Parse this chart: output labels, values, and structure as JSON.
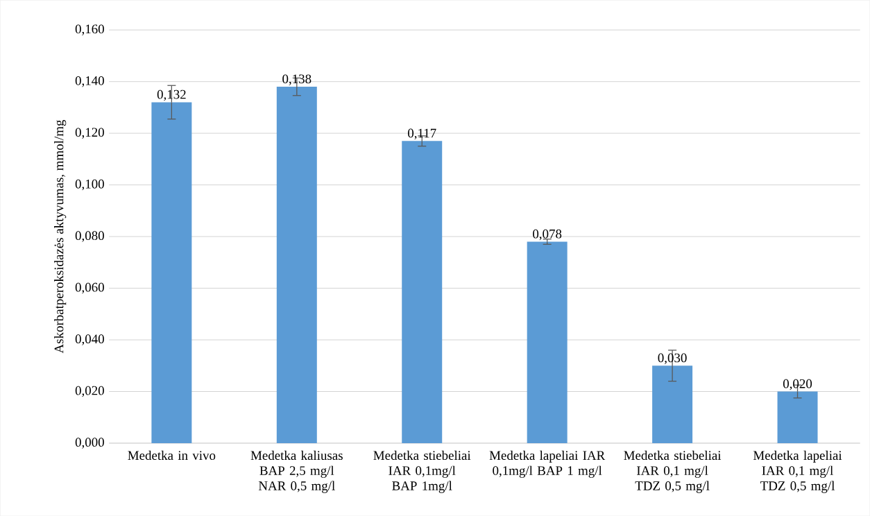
{
  "chart_data": {
    "type": "bar",
    "ylabel": "Askorbatperoksidazės aktyvumas, mmol/mg",
    "categories": [
      "Medetka in vivo",
      "Medetka kaliusas BAP 2,5 mg/l NAR 0,5 mg/l",
      "Medetka stiebeliai IAR 0,1mg/l BAP 1mg/l",
      "Medetka lapeliai IAR 0,1mg/l BAP 1 mg/l",
      "Medetka stiebeliai IAR 0,1 mg/l TDZ 0,5 mg/l",
      "Medetka lapeliai IAR 0,1 mg/l TDZ 0,5 mg/l"
    ],
    "values": [
      0.132,
      0.138,
      0.117,
      0.078,
      0.03,
      0.02
    ],
    "value_labels": [
      "0,132",
      "0,138",
      "0,117",
      "0,078",
      "0,030",
      "0,020"
    ],
    "errors": [
      0.0065,
      0.0034,
      0.002,
      0.001,
      0.006,
      0.0025
    ],
    "color": "#5b9bd5",
    "ylim": [
      0,
      0.16
    ],
    "yticks": [
      {
        "value": 0,
        "label": "0,000"
      },
      {
        "value": 0.02,
        "label": "0,020"
      },
      {
        "value": 0.04,
        "label": "0,040"
      },
      {
        "value": 0.06,
        "label": "0,060"
      },
      {
        "value": 0.08,
        "label": "0,080"
      },
      {
        "value": 0.1,
        "label": "0,100"
      },
      {
        "value": 0.12,
        "label": "0,120"
      },
      {
        "value": 0.14,
        "label": "0,140"
      },
      {
        "value": 0.16,
        "label": "0,160"
      }
    ],
    "grid": "y"
  }
}
